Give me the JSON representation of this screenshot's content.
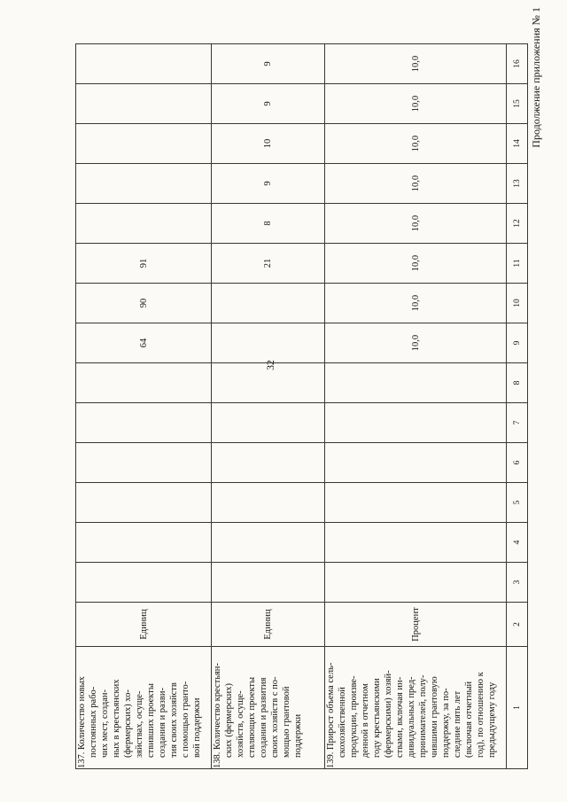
{
  "page": {
    "continuation_header": "Продолжение приложения № 1",
    "page_number": "32"
  },
  "table": {
    "column_numbers": [
      "1",
      "2",
      "3",
      "4",
      "5",
      "6",
      "7",
      "8",
      "9",
      "10",
      "11",
      "12",
      "13",
      "14",
      "15",
      "16"
    ],
    "rows": [
      {
        "number": "137.",
        "name_text": "137. Количество новых\nпостоянных рабо-\nчих мест, создан-\nных в крестьянских\n(фермерских) хо-\nзяйствах, осуще-\nствивших проекты\nсоздания и разви-\nтия своих хозяйств\nс помощью гранто-\nвой поддержки",
        "unit": "Единиц",
        "values": {
          "c9": "64",
          "c10": "90",
          "c11": "91"
        }
      },
      {
        "number": "138.",
        "name_text": "138. Количество крестьян-\nских (фермерских)\nхозяйств, осуще-\nствляющих проекты\nсоздания и развития\nсвоих хозяйств с по-\nмощью грантовой\nподдержки",
        "unit": "Единиц",
        "values": {
          "c11": "21",
          "c12": "8",
          "c13": "9",
          "c14": "10",
          "c15": "9",
          "c16": "9"
        }
      },
      {
        "number": "139.",
        "name_text": "139. Прирост объема сель-\nскохозяйственной\nпродукции, произве-\nденной в отчетном\nгоду крестьянскими\n(фермерскими) хозяй-\nствами, включая ин-\nдивидуальных пред-\nпринимателей, полу-\nчившими грантовую\nподдержку, за по-\nследние пять лет\n(включая отчетный\nгод), по отношению к\nпредыдущему году",
        "unit": "Процент",
        "values": {
          "c9": "10,0",
          "c10": "10,0",
          "c11": "10,0",
          "c12": "10,0",
          "c13": "10,0",
          "c14": "10,0",
          "c15": "10,0",
          "c16": "10,0"
        }
      }
    ]
  }
}
